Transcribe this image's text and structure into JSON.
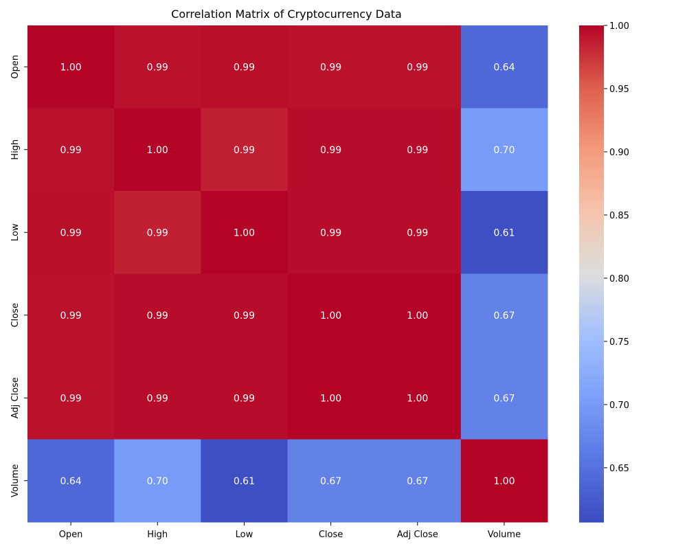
{
  "chart_data": {
    "type": "heatmap",
    "title": "Correlation Matrix of Cryptocurrency Data",
    "xlabel": "",
    "ylabel": "",
    "x_categories": [
      "Open",
      "High",
      "Low",
      "Close",
      "Adj Close",
      "Volume"
    ],
    "y_categories": [
      "Open",
      "High",
      "Low",
      "Close",
      "Adj Close",
      "Volume"
    ],
    "values": [
      [
        1.0,
        0.993,
        0.994,
        0.993,
        0.993,
        0.64
      ],
      [
        0.993,
        1.0,
        0.985,
        0.995,
        0.995,
        0.7
      ],
      [
        0.994,
        0.985,
        1.0,
        0.995,
        0.995,
        0.61
      ],
      [
        0.993,
        0.995,
        0.995,
        1.0,
        1.0,
        0.67
      ],
      [
        0.993,
        0.995,
        0.995,
        1.0,
        1.0,
        0.67
      ],
      [
        0.64,
        0.7,
        0.61,
        0.67,
        0.67,
        1.0
      ]
    ],
    "annotations": [
      [
        "1.00",
        "0.99",
        "0.99",
        "0.99",
        "0.99",
        "0.64"
      ],
      [
        "0.99",
        "1.00",
        "0.99",
        "0.99",
        "0.99",
        "0.70"
      ],
      [
        "0.99",
        "0.99",
        "1.00",
        "0.99",
        "0.99",
        "0.61"
      ],
      [
        "0.99",
        "0.99",
        "0.99",
        "1.00",
        "1.00",
        "0.67"
      ],
      [
        "0.99",
        "0.99",
        "0.99",
        "1.00",
        "1.00",
        "0.67"
      ],
      [
        "0.64",
        "0.70",
        "0.61",
        "0.67",
        "0.67",
        "1.00"
      ]
    ],
    "colormap": "coolwarm",
    "vmin": 0.607,
    "vmax": 1.0,
    "colorbar_ticks": [
      "0.65",
      "0.70",
      "0.75",
      "0.80",
      "0.85",
      "0.90",
      "0.95",
      "1.00"
    ],
    "colorbar_tick_values": [
      0.65,
      0.7,
      0.75,
      0.8,
      0.85,
      0.9,
      0.95,
      1.0
    ],
    "colorbar_placement": "right",
    "annotation_color": "#ffffff",
    "grid": false
  }
}
